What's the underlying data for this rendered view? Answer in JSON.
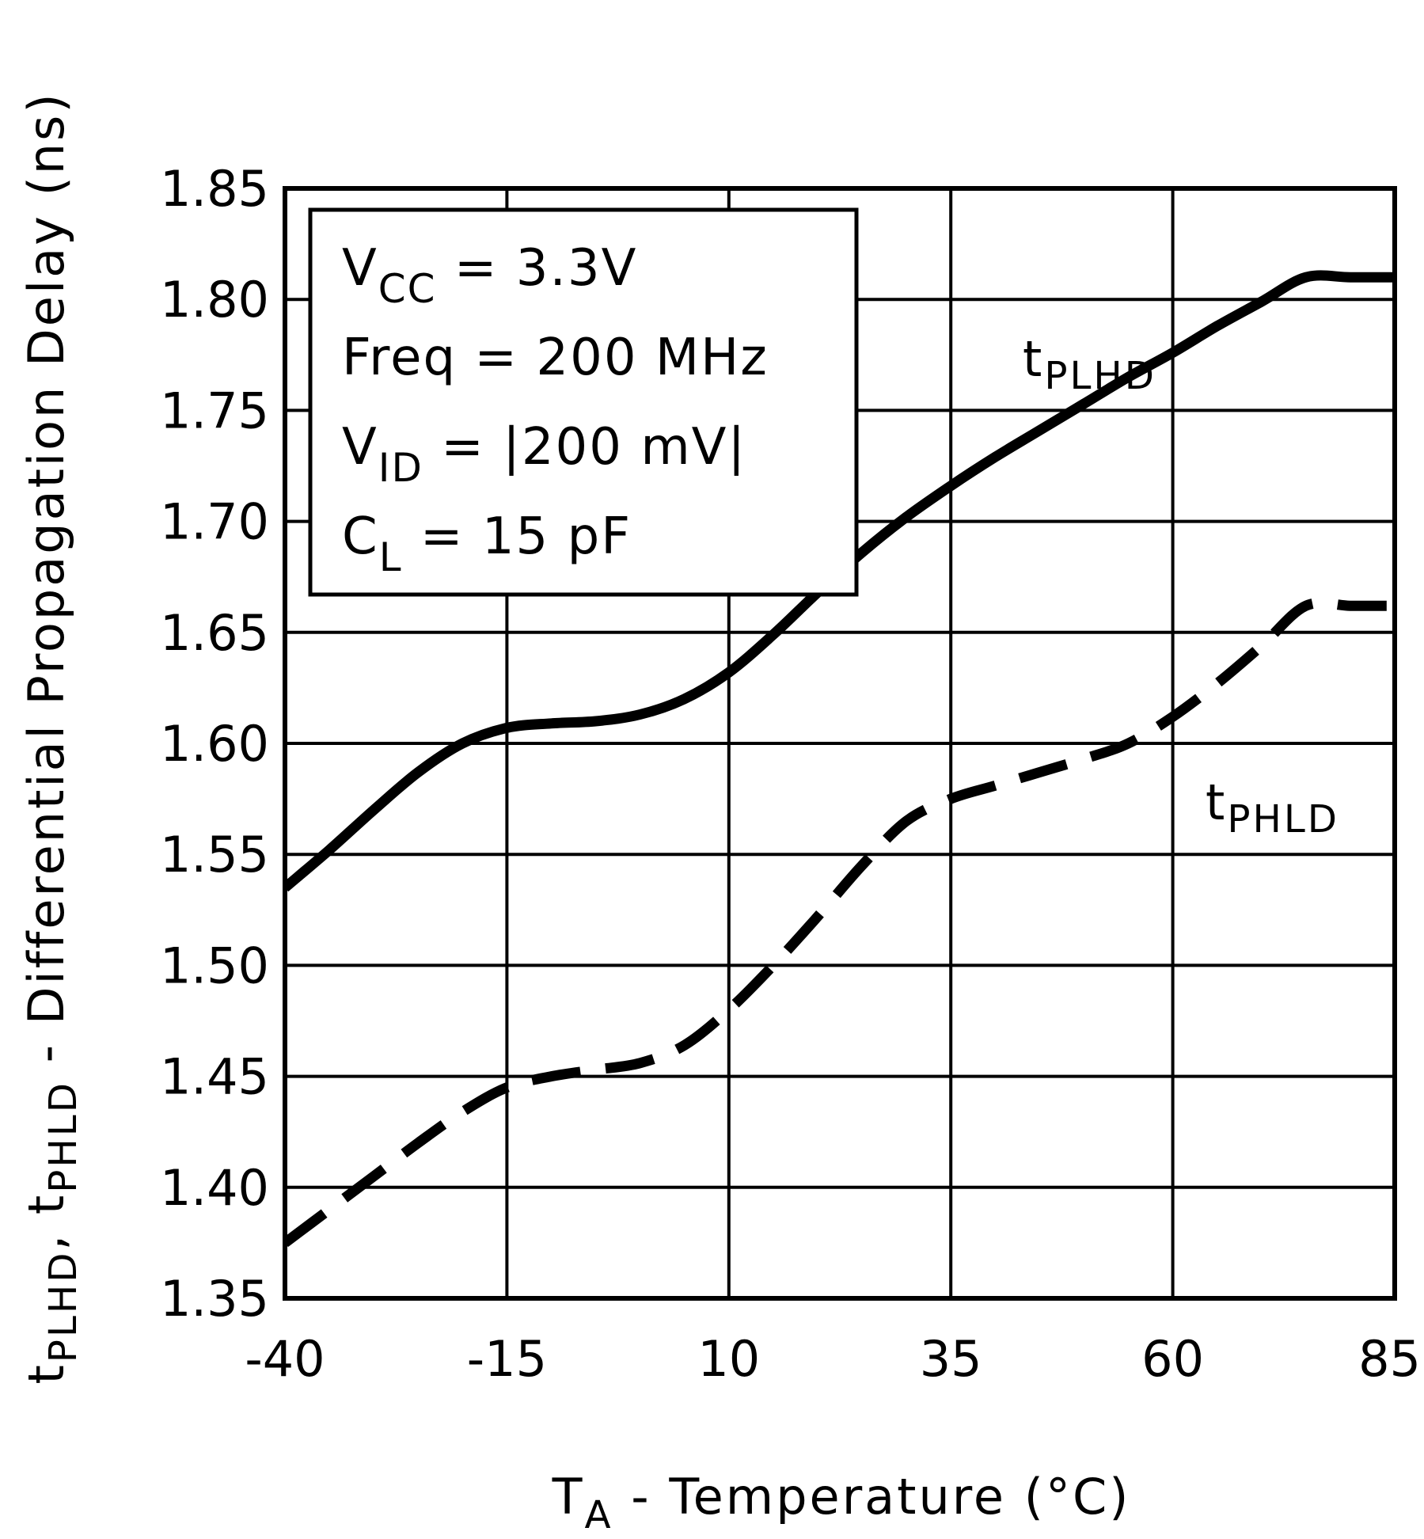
{
  "chart_data": {
    "type": "line",
    "xlabel_main": "T",
    "xlabel_sub": "A",
    "xlabel_rest": " - Temperature (°C)",
    "ylabel": {
      "t1": "t",
      "s1": "PLHD",
      "sep": ", ",
      "t2": "t",
      "s2": "PHLD",
      "rest": " - Differential Propagation Delay (ns)"
    },
    "x_ticks": [
      "-40",
      "-15",
      "10",
      "35",
      "60",
      "85"
    ],
    "x_tick_values": [
      -40,
      -15,
      10,
      35,
      60,
      85
    ],
    "y_ticks": [
      "1.35",
      "1.40",
      "1.45",
      "1.50",
      "1.55",
      "1.60",
      "1.65",
      "1.70",
      "1.75",
      "1.80",
      "1.85"
    ],
    "y_tick_values": [
      1.35,
      1.4,
      1.45,
      1.5,
      1.55,
      1.6,
      1.65,
      1.7,
      1.75,
      1.8,
      1.85
    ],
    "xlim": [
      -40,
      85
    ],
    "ylim": [
      1.35,
      1.85
    ],
    "grid": true,
    "series": [
      {
        "name": "tPLHD",
        "style": "solid",
        "x": [
          -40,
          -35,
          -30,
          -25,
          -20,
          -15,
          -10,
          -5,
          0,
          5,
          10,
          15,
          20,
          25,
          30,
          35,
          40,
          45,
          50,
          55,
          60,
          65,
          70,
          75,
          80,
          85
        ],
        "y": [
          1.535,
          1.552,
          1.57,
          1.587,
          1.6,
          1.607,
          1.609,
          1.61,
          1.613,
          1.62,
          1.632,
          1.649,
          1.668,
          1.686,
          1.702,
          1.716,
          1.729,
          1.741,
          1.753,
          1.765,
          1.776,
          1.788,
          1.799,
          1.81,
          1.81,
          1.81
        ]
      },
      {
        "name": "tPHLD",
        "style": "dashed",
        "x": [
          -40,
          -35,
          -30,
          -25,
          -20,
          -15,
          -10,
          -5,
          0,
          5,
          10,
          15,
          20,
          25,
          30,
          35,
          40,
          45,
          50,
          55,
          60,
          65,
          70,
          75,
          80,
          85
        ],
        "y": [
          1.375,
          1.39,
          1.405,
          1.42,
          1.434,
          1.445,
          1.45,
          1.453,
          1.456,
          1.464,
          1.48,
          1.5,
          1.522,
          1.545,
          1.565,
          1.575,
          1.581,
          1.587,
          1.593,
          1.6,
          1.612,
          1.627,
          1.644,
          1.662,
          1.662,
          1.662
        ]
      }
    ],
    "series_labels": [
      {
        "t": "t",
        "sub": "PLHD",
        "x": 56,
        "y": 1.775
      },
      {
        "t": "t",
        "sub": "PHLD",
        "x": 70,
        "y": 1.575
      }
    ],
    "conditions": [
      {
        "main": "V",
        "sub": "CC",
        "rest": "  =  3.3V"
      },
      {
        "main": "Freq",
        "sub": "",
        "rest": "  =  200 MHz"
      },
      {
        "main": "V",
        "sub": "ID",
        "rest": "  =  |200 mV|"
      },
      {
        "main": "C",
        "sub": "L",
        "rest": "  =  15 pF"
      }
    ]
  }
}
